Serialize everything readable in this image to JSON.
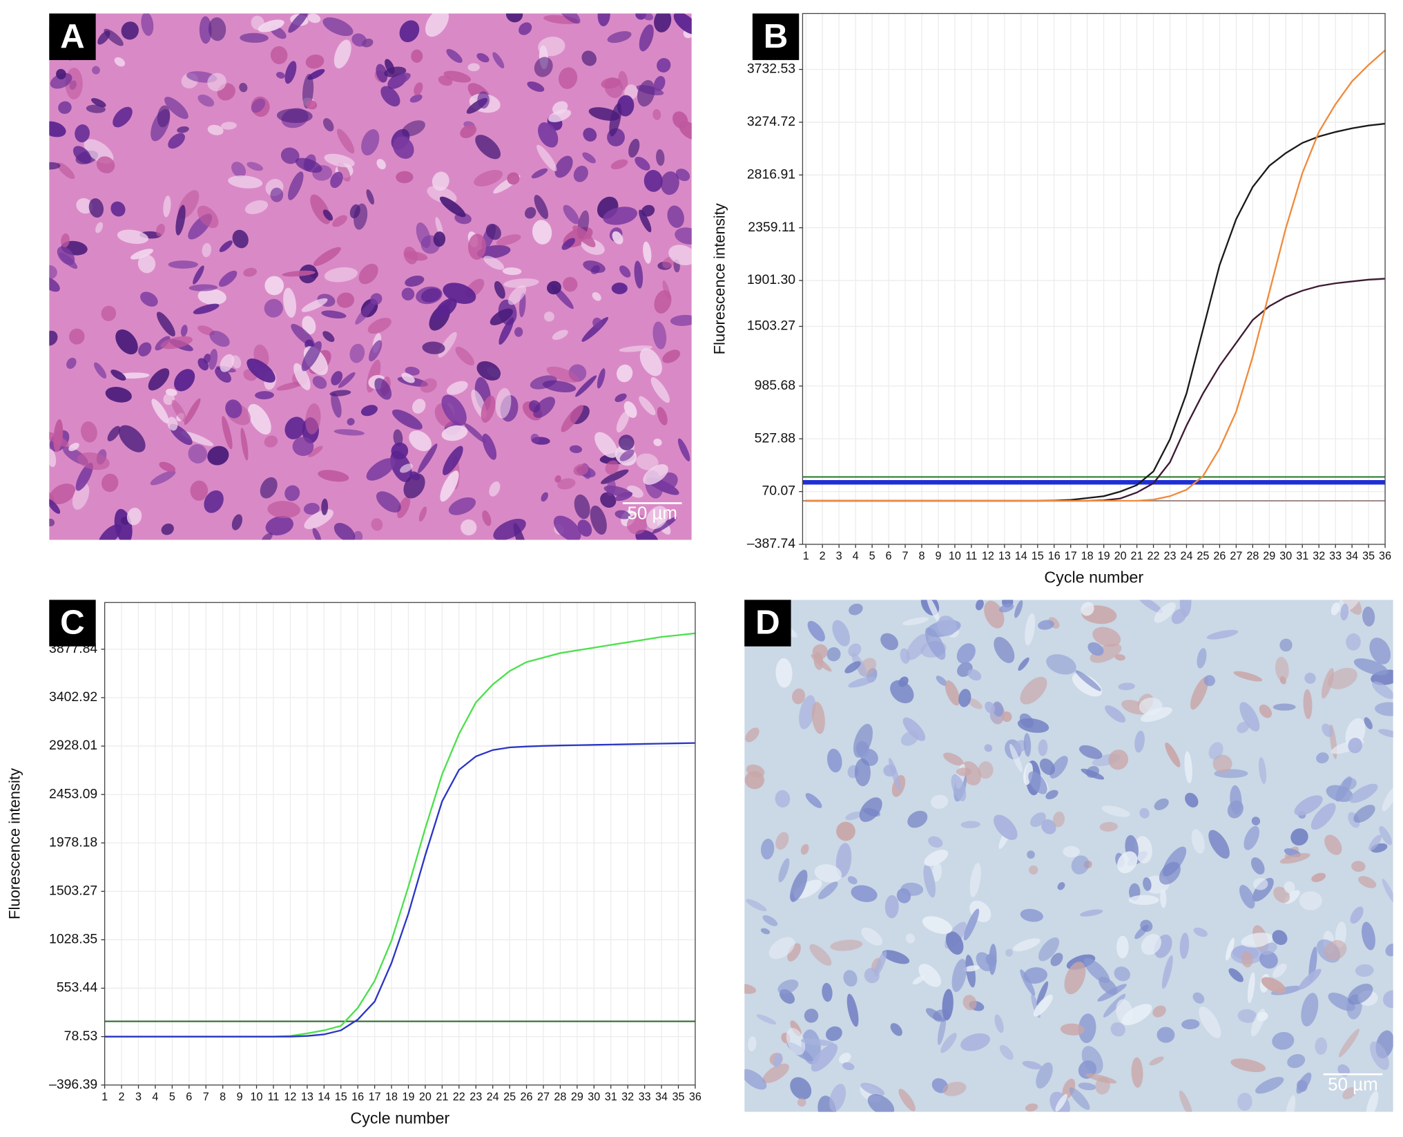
{
  "panels": [
    {
      "label": "A",
      "scale_bar": "50 µm"
    },
    {
      "label": "B"
    },
    {
      "label": "C"
    },
    {
      "label": "D",
      "scale_bar": "50 µm"
    }
  ],
  "chart_data": [
    {
      "type": "line",
      "xlabel": "Cycle number",
      "ylabel": "Fluorescence intensity",
      "x": [
        1,
        2,
        3,
        4,
        5,
        6,
        7,
        8,
        9,
        10,
        11,
        12,
        13,
        14,
        15,
        16,
        17,
        18,
        19,
        20,
        21,
        22,
        23,
        24,
        25,
        26,
        27,
        28,
        29,
        30,
        31,
        32,
        33,
        34,
        35,
        36
      ],
      "xlim": [
        0.8,
        36
      ],
      "xticks": [
        1,
        2,
        3,
        4,
        5,
        6,
        7,
        8,
        9,
        10,
        11,
        12,
        13,
        14,
        15,
        16,
        17,
        18,
        19,
        20,
        21,
        22,
        23,
        24,
        25,
        26,
        27,
        28,
        29,
        30,
        31,
        32,
        33,
        34,
        35,
        36
      ],
      "ylim": [
        -387.74,
        4218
      ],
      "yticks": [
        {
          "value": -387.74,
          "label": "–387.74"
        },
        70.07,
        527.88,
        985.68,
        1503.27,
        {
          "value": 1901.3,
          "label": "1901.30"
        },
        2359.11,
        2816.91,
        3274.72,
        3732.53
      ],
      "grid": true,
      "thresholds": [
        {
          "value": 197,
          "color": "#2e7d32",
          "thick": false
        },
        {
          "value": 150,
          "color": "#1f2fd6",
          "thick": true
        },
        {
          "value": -10,
          "color": "#a08a8a",
          "thick": false
        }
      ],
      "series": [
        {
          "color": "#1a1a1a",
          "values": [
            -10,
            -10,
            -10,
            -10,
            -10,
            -10,
            -10,
            -10,
            -10,
            -10,
            -10,
            -10,
            -10,
            -10,
            -10,
            -8,
            -2,
            14,
            30,
            70,
            126,
            245,
            524,
            922,
            1479,
            2036,
            2434,
            2713,
            2896,
            3007,
            3095,
            3151,
            3190,
            3222,
            3246,
            3262
          ]
        },
        {
          "color": "#3d1a33",
          "values": [
            -10,
            -10,
            -10,
            -10,
            -10,
            -10,
            -10,
            -10,
            -10,
            -10,
            -10,
            -10,
            -10,
            -10,
            -10,
            -10,
            -10,
            -10,
            -6,
            10,
            62,
            142,
            325,
            643,
            922,
            1161,
            1360,
            1559,
            1678,
            1758,
            1813,
            1853,
            1877,
            1893,
            1909,
            1917
          ]
        },
        {
          "color": "#f08a3c",
          "values": [
            -10,
            -10,
            -10,
            -10,
            -10,
            -10,
            -10,
            -10,
            -10,
            -10,
            -10,
            -10,
            -10,
            -10,
            -10,
            -10,
            -10,
            -10,
            -10,
            -10,
            -10,
            0,
            30,
            86,
            205,
            444,
            763,
            1240,
            1798,
            2355,
            2833,
            3191,
            3430,
            3629,
            3772,
            3899
          ]
        }
      ]
    },
    {
      "type": "line",
      "xlabel": "Cycle number",
      "ylabel": "Fluorescence intensity",
      "x": [
        1,
        2,
        3,
        4,
        5,
        6,
        7,
        8,
        9,
        10,
        11,
        12,
        13,
        14,
        15,
        16,
        17,
        18,
        19,
        20,
        21,
        22,
        23,
        24,
        25,
        26,
        27,
        28,
        29,
        30,
        31,
        32,
        33,
        34,
        35,
        36
      ],
      "xlim": [
        1,
        36
      ],
      "xticks": [
        1,
        2,
        3,
        4,
        5,
        6,
        7,
        8,
        9,
        10,
        11,
        12,
        13,
        14,
        15,
        16,
        17,
        18,
        19,
        20,
        21,
        22,
        23,
        24,
        25,
        26,
        27,
        28,
        29,
        30,
        31,
        32,
        33,
        34,
        35,
        36
      ],
      "ylim": [
        -396.39,
        4336
      ],
      "yticks": [
        {
          "value": -396.39,
          "label": "–396.39"
        },
        78.53,
        553.44,
        1028.35,
        1503.27,
        1978.18,
        2453.09,
        2928.01,
        3402.92,
        3877.84
      ],
      "grid": true,
      "thresholds": [
        {
          "value": 228,
          "color": "#2e6b2e",
          "thick": false
        }
      ],
      "series": [
        {
          "color": "#4be04b",
          "values": [
            78,
            78,
            78,
            78,
            78,
            78,
            78,
            78,
            78,
            78,
            78,
            85,
            110,
            140,
            184,
            360,
            625,
            1021,
            1550,
            2122,
            2651,
            3047,
            3356,
            3532,
            3664,
            3752,
            3796,
            3840,
            3867,
            3893,
            3920,
            3946,
            3972,
            3999,
            4016,
            4034
          ]
        },
        {
          "color": "#2a35c4",
          "values": [
            78,
            78,
            78,
            78,
            78,
            78,
            78,
            78,
            78,
            78,
            78,
            78,
            85,
            100,
            140,
            246,
            422,
            801,
            1285,
            1858,
            2387,
            2695,
            2827,
            2889,
            2915,
            2924,
            2930,
            2934,
            2937,
            2940,
            2943,
            2946,
            2949,
            2952,
            2955,
            2958
          ]
        }
      ]
    }
  ]
}
